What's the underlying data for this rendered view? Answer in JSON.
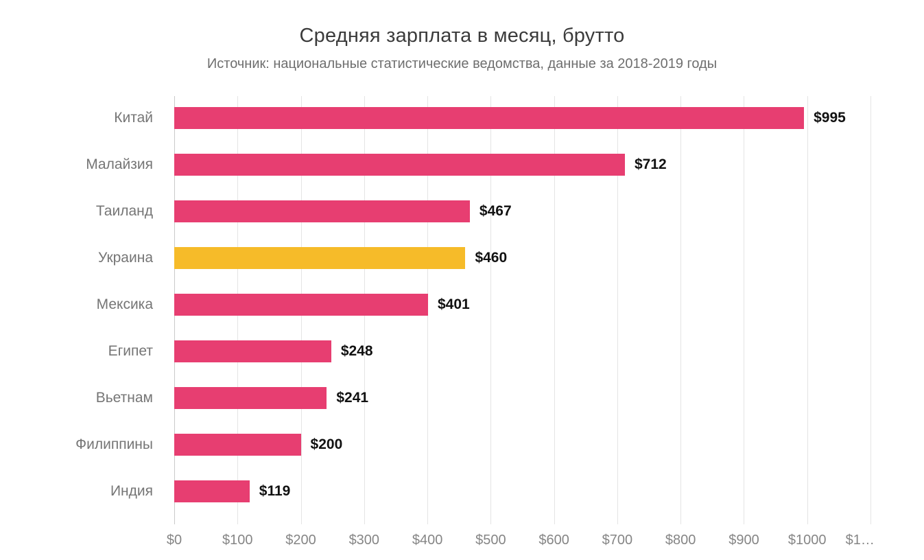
{
  "header": {
    "title": "Средняя зарплата в месяц, брутто",
    "subtitle": "Источник: национальные статистические ведомства, данные за 2018-2019 годы"
  },
  "chart_data": {
    "type": "bar",
    "orientation": "horizontal",
    "title": "Средняя зарплата в месяц, брутто",
    "subtitle": "Источник: национальные статистические ведомства, данные за 2018-2019 годы",
    "categories": [
      "Китай",
      "Малайзия",
      "Таиланд",
      "Украина",
      "Мексика",
      "Египет",
      "Вьетнам",
      "Филиппины",
      "Индия"
    ],
    "values": [
      995,
      712,
      467,
      460,
      401,
      248,
      241,
      200,
      119
    ],
    "value_labels": [
      "$995",
      "$712",
      "$467",
      "$460",
      "$401",
      "$248",
      "$241",
      "$200",
      "$119"
    ],
    "highlight_index": 3,
    "highlight_category": "Украина",
    "colors": {
      "bar": "#e73e71",
      "highlight": "#f6bb29"
    },
    "xlabel": "",
    "ylabel": "",
    "xlim": [
      0,
      1100
    ],
    "x_tick_values": [
      0,
      100,
      200,
      300,
      400,
      500,
      600,
      700,
      800,
      900,
      1000,
      1100
    ],
    "x_tick_labels": [
      "$0",
      "$100",
      "$200",
      "$300",
      "$400",
      "$500",
      "$600",
      "$700",
      "$800",
      "$900",
      "$1000",
      "$1…"
    ],
    "grid": true,
    "legend": "none"
  }
}
